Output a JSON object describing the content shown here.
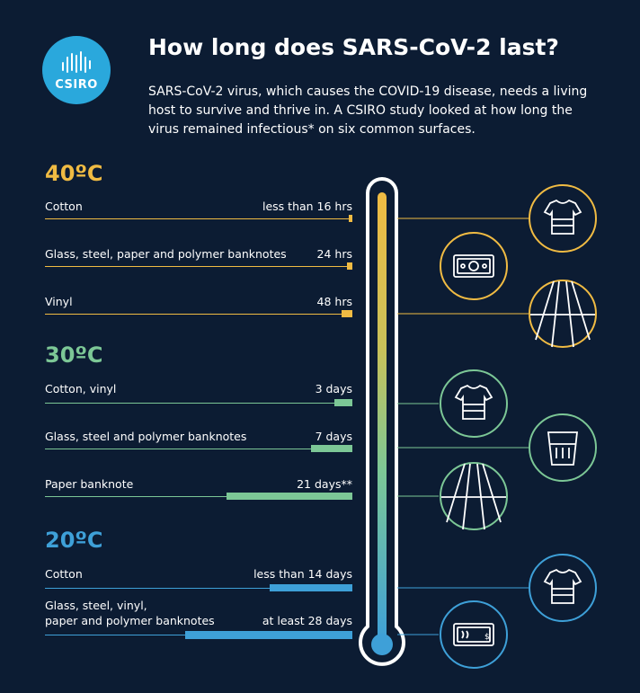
{
  "logo": {
    "text": "CSIRO"
  },
  "title": "How long does SARS-CoV-2 last?",
  "intro": "SARS-CoV-2 virus, which causes the COVID-19 disease, needs a living host to survive and thrive in. A CSIRO study looked at how long the virus remained infectious* on six common surfaces.",
  "colors": {
    "hot": "#f0bb43",
    "warm": "#7cc796",
    "cool": "#3ea0d8",
    "background": "#0c1c33"
  },
  "groups": [
    {
      "temperature": "40ºC",
      "color": "#f0bb43",
      "rows": [
        {
          "surface": "Cotton",
          "duration": "less than 16 hrs",
          "icon": "t-shirt-icon"
        },
        {
          "surface": "Glass, steel, paper and polymer banknotes",
          "duration": "24 hrs",
          "icon": "banknote-icon"
        },
        {
          "surface": "Vinyl",
          "duration": "48 hrs",
          "icon": "vinyl-road-icon"
        }
      ]
    },
    {
      "temperature": "30ºC",
      "color": "#7cc796",
      "rows": [
        {
          "surface": "Cotton, vinyl",
          "duration": "3 days",
          "icon": "t-shirt-icon"
        },
        {
          "surface": "Glass, steel and polymer banknotes",
          "duration": "7 days",
          "icon": "glass-icon"
        },
        {
          "surface": "Paper banknote",
          "duration": "21 days**",
          "icon": "vinyl-road-icon"
        }
      ]
    },
    {
      "temperature": "20ºC",
      "color": "#3ea0d8",
      "rows": [
        {
          "surface": "Cotton",
          "duration": "less than 14 days",
          "icon": "t-shirt-icon"
        },
        {
          "surface_line1": "Glass, steel, vinyl,",
          "surface_line2": "paper and polymer banknotes",
          "duration": "at least 28 days",
          "icon": "banknote-icon"
        }
      ]
    }
  ]
}
